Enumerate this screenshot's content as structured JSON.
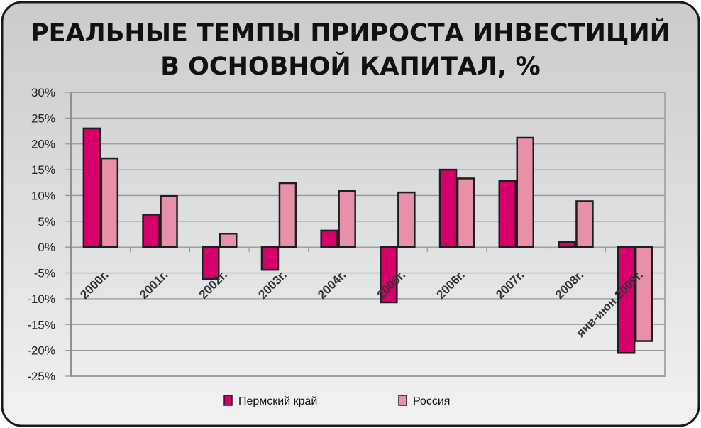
{
  "chart_data": {
    "type": "bar",
    "title": "РЕАЛЬНЫЕ ТЕМПЫ ПРИРОСТА ИНВЕСТИЦИЙ В ОСНОВНОЙ КАПИТАЛ, %",
    "title_lines": [
      "РЕАЛЬНЫЕ ТЕМПЫ ПРИРОСТА ИНВЕСТИЦИЙ",
      "В ОСНОВНОЙ КАПИТАЛ, %"
    ],
    "categories": [
      "2000г.",
      "2001г.",
      "2002г.",
      "2003г.",
      "2004г.",
      "2005г.",
      "2006г.",
      "2007г.",
      "2008г.",
      "янв-июн 2009г."
    ],
    "series": [
      {
        "name": "Пермский край",
        "color": "#d6006b",
        "values": [
          23.0,
          6.3,
          -6.2,
          -4.4,
          3.2,
          -10.7,
          15.0,
          12.8,
          1.0,
          -20.5
        ]
      },
      {
        "name": "Россия",
        "color": "#e890a8",
        "values": [
          17.2,
          9.9,
          2.6,
          12.4,
          10.9,
          10.6,
          13.3,
          21.2,
          8.9,
          -18.2
        ]
      }
    ],
    "yticks": [
      "30%",
      "25%",
      "20%",
      "15%",
      "10%",
      "5%",
      "0%",
      "-5%",
      "-10%",
      "-15%",
      "-20%",
      "-25%"
    ],
    "ylim": [
      -25,
      30
    ],
    "ytick_step": 5,
    "grid": true,
    "legend": "bottom"
  }
}
